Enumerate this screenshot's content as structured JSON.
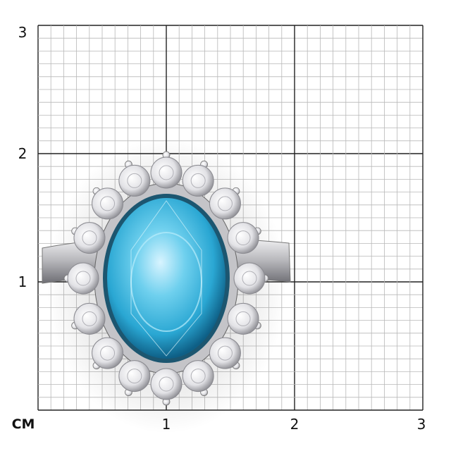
{
  "scale": {
    "unit_label": "CM",
    "y_labels": [
      "1",
      "2",
      "3"
    ],
    "x_labels": [
      "1",
      "2",
      "3"
    ],
    "subdivisions_per_cm": 10
  },
  "colors": {
    "minor_grid": "#b8b8b8",
    "major_grid": "#222222",
    "gem": "#3ab8dc",
    "metal": "#d8d8dc"
  },
  "subject": {
    "stone_count": 16
  }
}
